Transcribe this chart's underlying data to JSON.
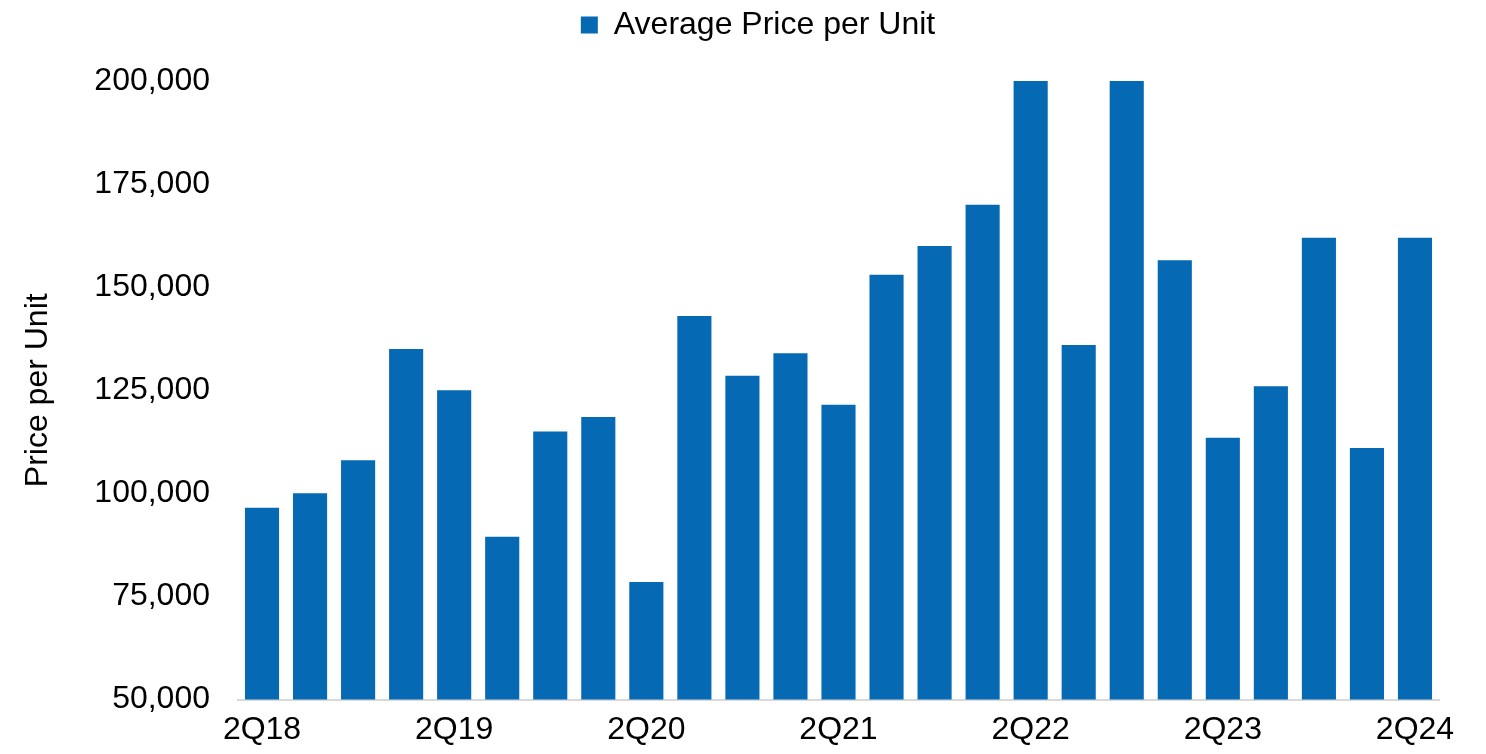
{
  "chart_data": {
    "type": "bar",
    "categories": [
      "2Q18",
      null,
      null,
      null,
      "2Q19",
      null,
      null,
      null,
      "2Q20",
      null,
      null,
      null,
      "2Q21",
      null,
      null,
      null,
      "2Q22",
      null,
      null,
      null,
      "2Q23",
      null,
      null,
      null,
      "2Q24"
    ],
    "series": [
      {
        "name": "Average Price per Unit",
        "color": "#0569b3",
        "values": [
          96500,
          100000,
          108000,
          135000,
          125000,
          89500,
          115000,
          118500,
          78500,
          143000,
          128500,
          134000,
          121500,
          153000,
          160000,
          170000,
          200000,
          136000,
          200000,
          156500,
          113500,
          126000,
          162000,
          111000,
          162000
        ]
      }
    ],
    "ylabel": "Price per Unit",
    "ylim": [
      50000,
      200000
    ],
    "yticks": [
      {
        "value": 50000,
        "label": "50,000"
      },
      {
        "value": 75000,
        "label": "75,000"
      },
      {
        "value": 100000,
        "label": "100,000"
      },
      {
        "value": 125000,
        "label": "125,000"
      },
      {
        "value": 150000,
        "label": "150,000"
      },
      {
        "value": 175000,
        "label": "175,000"
      },
      {
        "value": 200000,
        "label": "200,000"
      }
    ],
    "legend": "top",
    "grid": false
  }
}
